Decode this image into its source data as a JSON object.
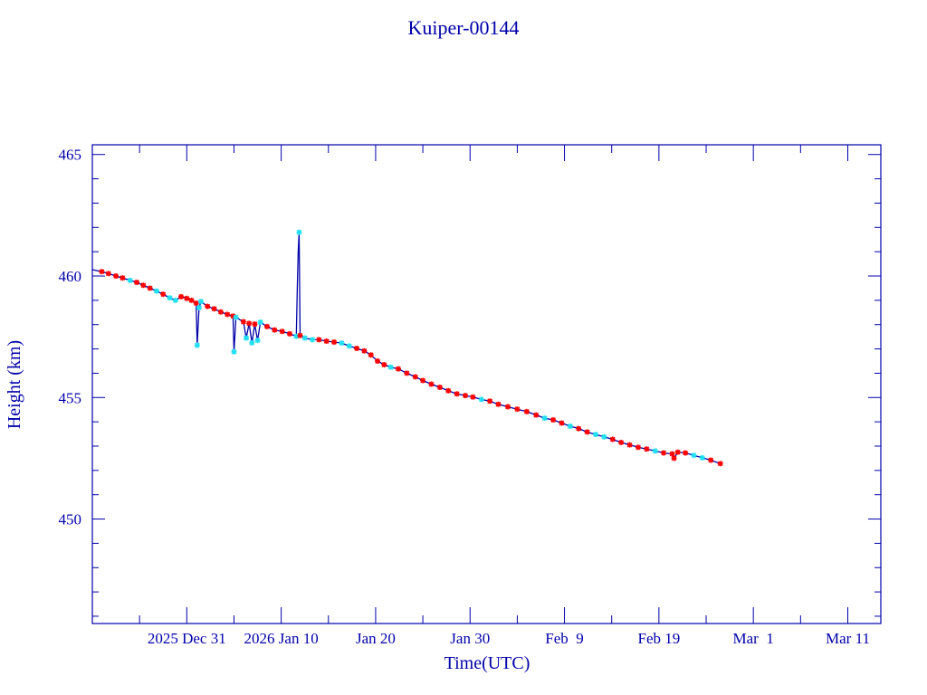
{
  "chart_data": {
    "type": "line",
    "title": "Kuiper-00144",
    "xlabel": "Time(UTC)",
    "ylabel": "Height (km)",
    "x_reference": "2025 Dec 31",
    "xlim": [
      -10,
      73.5
    ],
    "ylim": [
      445.7,
      465.4
    ],
    "grid": false,
    "x_ticks": [
      {
        "value": 0,
        "label": "2025 Dec 31"
      },
      {
        "value": 10,
        "label": "2026 Jan 10"
      },
      {
        "value": 20,
        "label": "Jan 20"
      },
      {
        "value": 30,
        "label": "Jan 30"
      },
      {
        "value": 40,
        "label": "Feb  9"
      },
      {
        "value": 50,
        "label": "Feb 19"
      },
      {
        "value": 60,
        "label": "Mar  1"
      },
      {
        "value": 70,
        "label": "Mar 11"
      }
    ],
    "y_ticks": [
      {
        "value": 450,
        "label": "450"
      },
      {
        "value": 455,
        "label": "455"
      },
      {
        "value": 460,
        "label": "460"
      },
      {
        "value": 465,
        "label": "465"
      }
    ],
    "colors": {
      "axis": "#0000aa",
      "line": "#0000aa",
      "marker_r": "#ff0000",
      "marker_c": "#22e0f0"
    },
    "series": [
      {
        "name": "height",
        "points": [
          [
            -10.0,
            460.26,
            "n"
          ],
          [
            -9.0,
            460.18,
            "r"
          ],
          [
            -8.3,
            460.1,
            "r"
          ],
          [
            -7.5,
            460.0,
            "r"
          ],
          [
            -6.8,
            459.92,
            "r"
          ],
          [
            -6.0,
            459.82,
            "c"
          ],
          [
            -5.3,
            459.74,
            "r"
          ],
          [
            -4.6,
            459.62,
            "r"
          ],
          [
            -3.9,
            459.5,
            "r"
          ],
          [
            -3.2,
            459.38,
            "c"
          ],
          [
            -2.5,
            459.25,
            "r"
          ],
          [
            -1.8,
            459.1,
            "c"
          ],
          [
            -1.2,
            459.0,
            "c"
          ],
          [
            -0.6,
            459.15,
            "r"
          ],
          [
            0.0,
            459.08,
            "r"
          ],
          [
            0.5,
            459.0,
            "r"
          ],
          [
            1.0,
            458.88,
            "r"
          ],
          [
            1.1,
            457.15,
            "c"
          ],
          [
            1.3,
            458.7,
            "c"
          ],
          [
            1.5,
            458.95,
            "c"
          ],
          [
            2.2,
            458.75,
            "r"
          ],
          [
            2.9,
            458.65,
            "r"
          ],
          [
            3.6,
            458.52,
            "r"
          ],
          [
            4.3,
            458.42,
            "r"
          ],
          [
            4.9,
            458.35,
            "r"
          ],
          [
            5.0,
            456.88,
            "c"
          ],
          [
            5.2,
            458.3,
            "c"
          ],
          [
            6.0,
            458.12,
            "r"
          ],
          [
            6.3,
            457.45,
            "c"
          ],
          [
            6.6,
            458.05,
            "r"
          ],
          [
            6.9,
            457.25,
            "c"
          ],
          [
            7.2,
            458.02,
            "r"
          ],
          [
            7.5,
            457.35,
            "c"
          ],
          [
            7.8,
            458.1,
            "c"
          ],
          [
            8.5,
            457.92,
            "r"
          ],
          [
            9.3,
            457.78,
            "r"
          ],
          [
            10.1,
            457.72,
            "r"
          ],
          [
            10.9,
            457.62,
            "r"
          ],
          [
            11.6,
            457.52,
            "c"
          ],
          [
            11.7,
            459.5,
            "n"
          ],
          [
            11.8,
            461.0,
            "n"
          ],
          [
            11.9,
            461.8,
            "c"
          ],
          [
            12.0,
            457.55,
            "r"
          ],
          [
            12.5,
            457.45,
            "c"
          ],
          [
            13.3,
            457.38,
            "c"
          ],
          [
            14.0,
            457.38,
            "r"
          ],
          [
            14.8,
            457.32,
            "r"
          ],
          [
            15.6,
            457.28,
            "r"
          ],
          [
            16.4,
            457.24,
            "c"
          ],
          [
            17.2,
            457.12,
            "c"
          ],
          [
            18.0,
            457.02,
            "r"
          ],
          [
            18.8,
            456.92,
            "r"
          ],
          [
            19.5,
            456.75,
            "r"
          ],
          [
            20.2,
            456.5,
            "r"
          ],
          [
            20.9,
            456.35,
            "r"
          ],
          [
            21.6,
            456.25,
            "c"
          ],
          [
            22.4,
            456.18,
            "r"
          ],
          [
            23.3,
            456.0,
            "r"
          ],
          [
            24.2,
            455.85,
            "r"
          ],
          [
            25.0,
            455.7,
            "r"
          ],
          [
            25.9,
            455.55,
            "r"
          ],
          [
            26.8,
            455.42,
            "r"
          ],
          [
            27.7,
            455.28,
            "r"
          ],
          [
            28.6,
            455.15,
            "r"
          ],
          [
            29.5,
            455.08,
            "r"
          ],
          [
            30.3,
            455.02,
            "r"
          ],
          [
            31.2,
            454.92,
            "c"
          ],
          [
            32.1,
            454.85,
            "r"
          ],
          [
            33.0,
            454.72,
            "r"
          ],
          [
            34.0,
            454.62,
            "r"
          ],
          [
            35.0,
            454.52,
            "r"
          ],
          [
            36.0,
            454.42,
            "r"
          ],
          [
            37.0,
            454.28,
            "r"
          ],
          [
            37.9,
            454.15,
            "c"
          ],
          [
            38.8,
            454.08,
            "r"
          ],
          [
            39.7,
            453.95,
            "r"
          ],
          [
            40.6,
            453.82,
            "c"
          ],
          [
            41.5,
            453.72,
            "r"
          ],
          [
            42.4,
            453.58,
            "r"
          ],
          [
            43.3,
            453.48,
            "c"
          ],
          [
            44.2,
            453.38,
            "c"
          ],
          [
            45.1,
            453.28,
            "r"
          ],
          [
            46.0,
            453.15,
            "r"
          ],
          [
            46.9,
            453.05,
            "r"
          ],
          [
            47.8,
            452.95,
            "r"
          ],
          [
            48.7,
            452.88,
            "r"
          ],
          [
            49.6,
            452.8,
            "c"
          ],
          [
            50.5,
            452.72,
            "r"
          ],
          [
            51.4,
            452.68,
            "r"
          ],
          [
            51.6,
            452.5,
            "r"
          ],
          [
            52.0,
            452.75,
            "r"
          ],
          [
            52.8,
            452.72,
            "r"
          ],
          [
            53.7,
            452.62,
            "c"
          ],
          [
            54.6,
            452.52,
            "c"
          ],
          [
            55.5,
            452.42,
            "r"
          ],
          [
            56.5,
            452.28,
            "r"
          ]
        ]
      }
    ]
  }
}
